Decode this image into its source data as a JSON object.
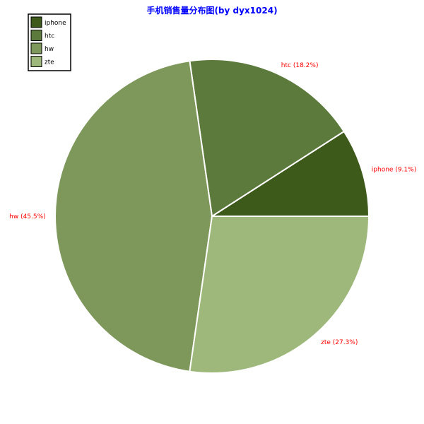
{
  "chart_data": {
    "type": "pie",
    "title": "手机销售量分布图(by dyx1024)",
    "categories": [
      "iphone",
      "htc",
      "hw",
      "zte"
    ],
    "values": [
      9.1,
      18.2,
      45.5,
      27.3
    ],
    "labels": [
      "iphone (9.1%)",
      "htc (18.2%)",
      "hw (45.5%)",
      "zte (27.3%)"
    ],
    "colors": [
      "#3d5a1b",
      "#5c7a3c",
      "#7e975b",
      "#9db87a"
    ],
    "start_angle_deg": 0,
    "direction": "counterclockwise",
    "legend": {
      "position": "top-left",
      "entries": [
        "iphone",
        "htc",
        "hw",
        "zte"
      ]
    },
    "title_color": "#0000ff",
    "label_color": "#ff0000",
    "slice_edge_color": "#ffffff"
  }
}
